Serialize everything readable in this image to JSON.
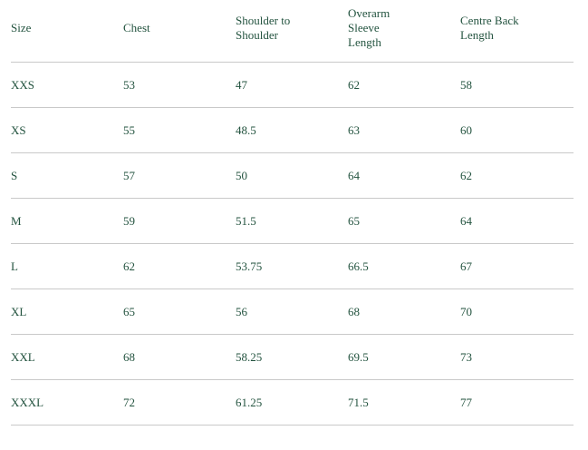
{
  "table": {
    "header": [
      "Size",
      "Chest",
      "Shoulder to Shoulder",
      "Overarm Sleeve Length",
      "Centre Back Length"
    ],
    "rows": [
      [
        "XXS",
        53,
        47,
        62,
        58
      ],
      [
        "XS",
        55,
        48.5,
        63,
        60
      ],
      [
        "S",
        57,
        50,
        64,
        62
      ],
      [
        "M",
        59,
        51.5,
        65,
        64
      ],
      [
        "L",
        62,
        53.75,
        66.5,
        67
      ],
      [
        "XL",
        65,
        56,
        68,
        70
      ],
      [
        "XXL",
        68,
        58.25,
        69.5,
        73
      ],
      [
        "XXXL",
        72,
        61.25,
        71.5,
        77
      ]
    ]
  }
}
